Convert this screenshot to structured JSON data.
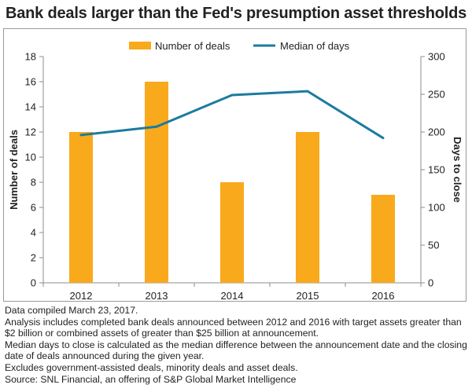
{
  "title": "Bank deals larger than the Fed's presumption asset thresholds",
  "legend": {
    "deals": "Number of deals",
    "days": "Median of days"
  },
  "colors": {
    "bar": "#F9A91C",
    "line": "#1C7B9E"
  },
  "chart_data": {
    "type": "bar+line",
    "categories": [
      "2012",
      "2013",
      "2014",
      "2015",
      "2016"
    ],
    "series": [
      {
        "name": "Number of deals",
        "type": "bar",
        "axis": "left",
        "values": [
          12,
          16,
          8,
          12,
          7
        ]
      },
      {
        "name": "Median of days",
        "type": "line",
        "axis": "right",
        "values": [
          196,
          207,
          249,
          254,
          192
        ]
      }
    ],
    "ylabel": "Number of deals",
    "y2label": "Days to close",
    "ylim": [
      0,
      18
    ],
    "yticks": [
      "0",
      "2",
      "4",
      "6",
      "8",
      "10",
      "12",
      "14",
      "16",
      "18"
    ],
    "y2lim": [
      0,
      300
    ],
    "y2ticks": [
      "0",
      "50",
      "100",
      "150",
      "200",
      "250",
      "300"
    ],
    "legend_position": "top",
    "grid": false
  },
  "notes": [
    "Data compiled March 23, 2017.",
    "Analysis includes completed bank deals announced between 2012 and 2016 with target assets greater than $2 billion or combined assets of greater than $25 billion at announcement.",
    "Median days to close is calculated as the median difference between the announcement date and the closing date of deals announced during the given year.",
    "Excludes government-assisted deals, minority deals and asset deals.",
    "Source: SNL Financial, an offering of S&P Global Market Intelligence"
  ]
}
